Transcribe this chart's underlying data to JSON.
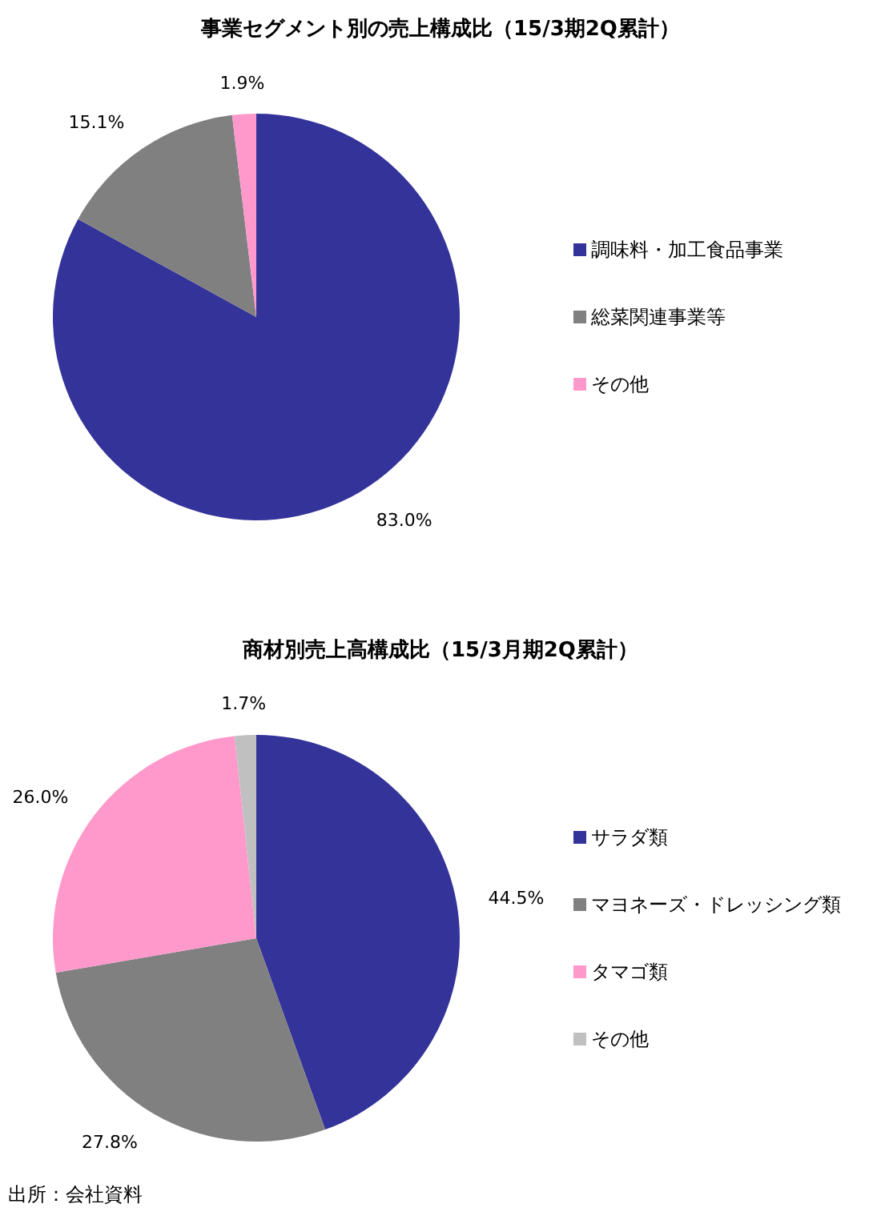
{
  "chart_data": [
    {
      "type": "pie",
      "title": "事業セグメント別の売上構成比（15/3期2Q累計）",
      "categories": [
        "調味料・加工食品事業",
        "総菜関連事業等",
        "その他"
      ],
      "values": [
        83.0,
        15.1,
        1.9
      ],
      "colors": [
        "#333399",
        "#808080",
        "#ff99cc"
      ],
      "value_labels": [
        "83.0%",
        "15.1%",
        "1.9%"
      ],
      "legend": "right"
    },
    {
      "type": "pie",
      "title": "商材別売上高構成比（15/3月期2Q累計）",
      "categories": [
        "サラダ類",
        "マヨネーズ・ドレッシング類",
        "タマゴ類",
        "その他"
      ],
      "values": [
        44.5,
        27.8,
        26.0,
        1.7
      ],
      "colors": [
        "#333399",
        "#808080",
        "#ff99cc",
        "#c0c0c0"
      ],
      "value_labels": [
        "44.5%",
        "27.8%",
        "26.0%",
        "1.7%"
      ],
      "legend": "right",
      "annotations": [
        "出所：会社資料"
      ]
    }
  ]
}
